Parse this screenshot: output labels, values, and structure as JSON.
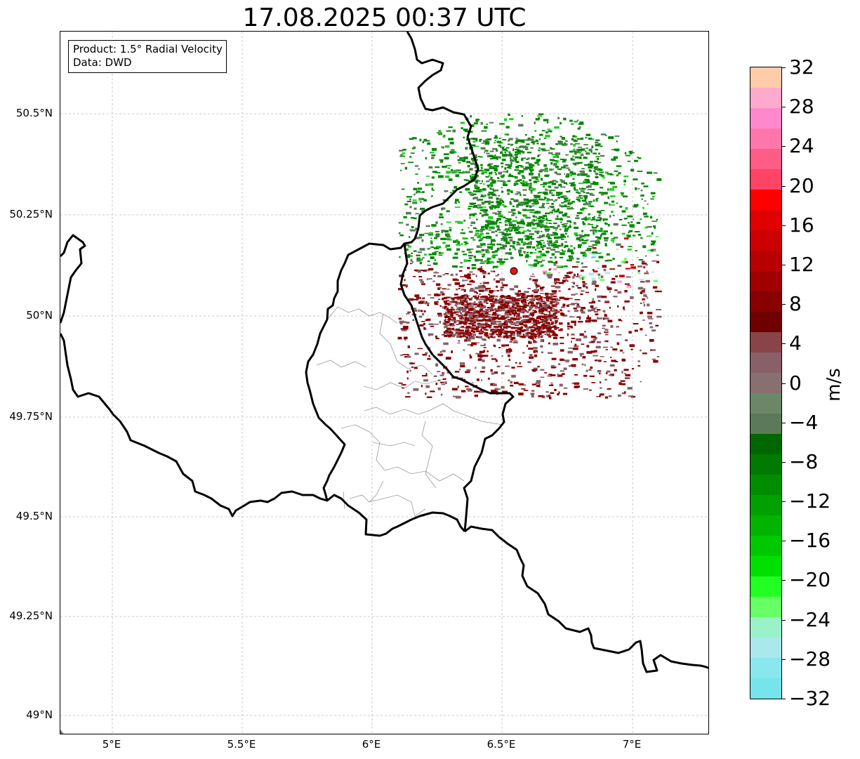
{
  "title": "17.08.2025 00:37 UTC",
  "info_box": {
    "product": "Product: 1.5° Radial Velocity",
    "data_source": "Data: DWD"
  },
  "latitude_ticks": [
    "50.5°N",
    "50.25°N",
    "50°N",
    "49.75°N",
    "49.5°N",
    "49.25°N",
    "49°N"
  ],
  "longitude_ticks": [
    "5°E",
    "5.5°E",
    "6°E",
    "6.5°E",
    "7°E"
  ],
  "colorbar": {
    "unit": "m/s",
    "tick_labels": [
      "32",
      "28",
      "24",
      "20",
      "16",
      "12",
      "8",
      "4",
      "0",
      "−4",
      "−8",
      "−12",
      "−16",
      "−20",
      "−24",
      "−28",
      "−32"
    ],
    "colors_top_to_bottom": [
      "#ffccaa",
      "#ffaacc",
      "#ff88cc",
      "#ff77aa",
      "#ff5c88",
      "#ff4466",
      "#ff0000",
      "#e00000",
      "#cc0000",
      "#b80000",
      "#a00000",
      "#880000",
      "#6e0000",
      "#884448",
      "#886068",
      "#887070",
      "#6a8868",
      "#5a7a58",
      "#006600",
      "#007a00",
      "#008e00",
      "#00a000",
      "#00b400",
      "#00c800",
      "#00e000",
      "#22ff22",
      "#66ff66",
      "#99f2c8",
      "#aae8ee",
      "#88e8ee",
      "#77e4ec"
    ]
  },
  "radar_site_color": "#ee1111",
  "colors": {
    "receding_strong": "#880000",
    "receding_weak": "#886068",
    "approaching_strong": "#008800",
    "approaching_weak": "#5a7a58"
  }
}
